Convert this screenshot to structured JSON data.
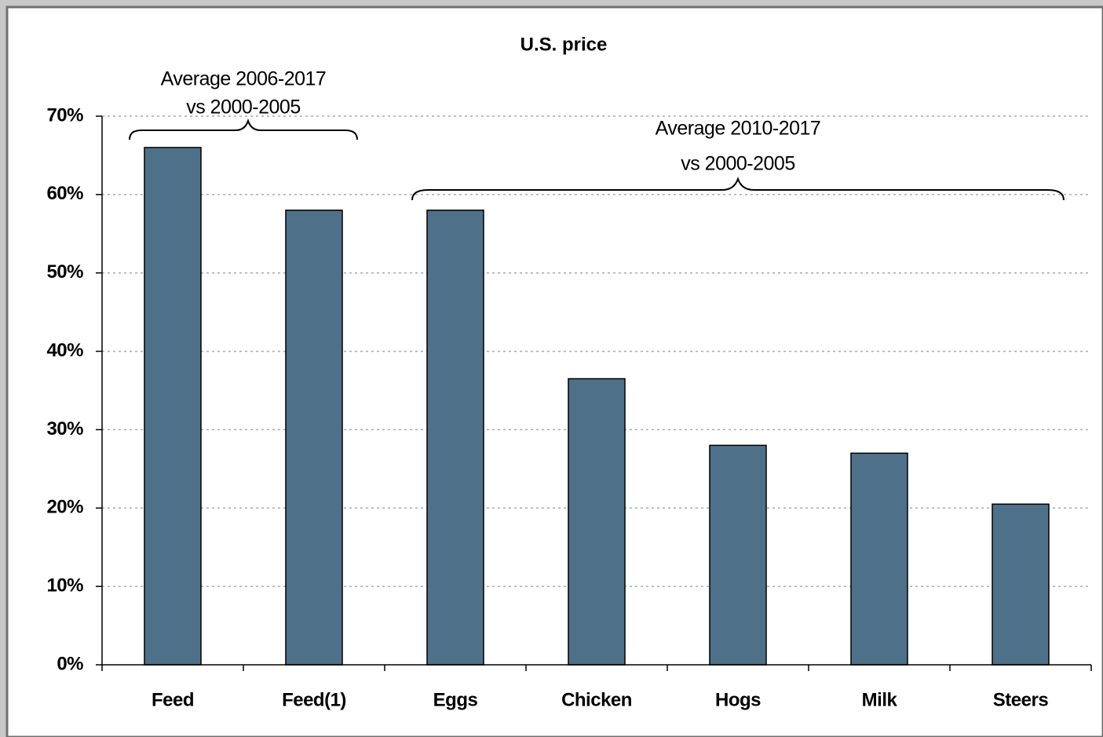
{
  "chart_data": {
    "type": "bar",
    "title": "U.S. price",
    "categories": [
      "Feed",
      "Feed(1)",
      "Eggs",
      "Chicken",
      "Hogs",
      "Milk",
      "Steers"
    ],
    "values": [
      66,
      58,
      58,
      36.5,
      28,
      27,
      20.5
    ],
    "color": "#4f7089",
    "ylim": [
      0,
      70
    ],
    "yticks": [
      {
        "value": 0,
        "label": "0%"
      },
      {
        "value": 10,
        "label": "10%"
      },
      {
        "value": 20,
        "label": "20%"
      },
      {
        "value": 30,
        "label": "30%"
      },
      {
        "value": 40,
        "label": "40%"
      },
      {
        "value": 50,
        "label": "50%"
      },
      {
        "value": 60,
        "label": "60%"
      },
      {
        "value": 70,
        "label": "70%"
      }
    ],
    "grid": true,
    "annotations": [
      {
        "lines": [
          "Average 2006-2017",
          "vs 2000-2005"
        ]
      },
      {
        "lines": [
          "Average 2010-2017",
          "vs 2000-2005"
        ]
      }
    ]
  }
}
